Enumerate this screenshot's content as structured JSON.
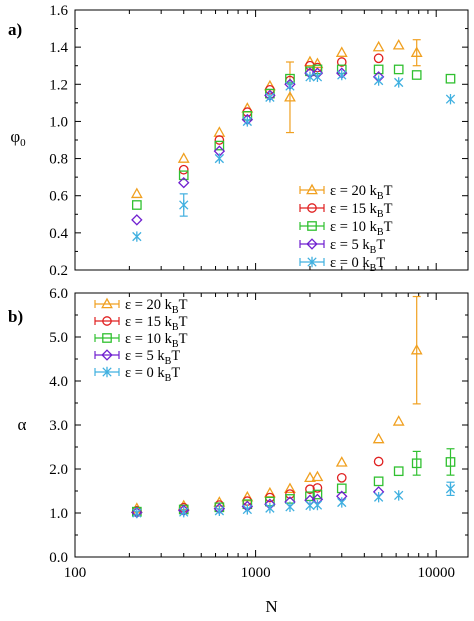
{
  "chart_data": [
    {
      "type": "scatter",
      "panel_label": "a)",
      "ylabel": "φ",
      "ylabel_sub": "0",
      "xlabel": "",
      "xscale": "log",
      "xlim": [
        100,
        15000
      ],
      "ylim": [
        0.2,
        1.6
      ],
      "yticks": [
        "0.2",
        "0.4",
        "0.6",
        "0.8",
        "1.0",
        "1.2",
        "1.4",
        "1.6"
      ],
      "xticks": [],
      "legend_placement": "bottom-right",
      "series": [
        {
          "name": "ε = 20 k_BT",
          "label_prefix": "ε = 20 k",
          "label_sub": "B",
          "label_suffix": "T",
          "marker": "triangle",
          "color": "#f0a020",
          "points": [
            {
              "x": 220,
              "y": 0.61
            },
            {
              "x": 400,
              "y": 0.8
            },
            {
              "x": 630,
              "y": 0.94
            },
            {
              "x": 900,
              "y": 1.07
            },
            {
              "x": 1200,
              "y": 1.19
            },
            {
              "x": 1550,
              "y": 1.13,
              "err": 0.19
            },
            {
              "x": 2000,
              "y": 1.32
            },
            {
              "x": 2200,
              "y": 1.31
            },
            {
              "x": 3000,
              "y": 1.37
            },
            {
              "x": 4800,
              "y": 1.4
            },
            {
              "x": 6200,
              "y": 1.41
            },
            {
              "x": 7800,
              "y": 1.37,
              "err": 0.07
            }
          ]
        },
        {
          "name": "ε = 15 k_BT",
          "label_prefix": "ε = 15 k",
          "label_sub": "B",
          "label_suffix": "T",
          "marker": "circle",
          "color": "#e02020",
          "points": [
            {
              "x": 400,
              "y": 0.74
            },
            {
              "x": 630,
              "y": 0.9
            },
            {
              "x": 900,
              "y": 1.05
            },
            {
              "x": 1200,
              "y": 1.17
            },
            {
              "x": 1550,
              "y": 1.22
            },
            {
              "x": 2000,
              "y": 1.3
            },
            {
              "x": 2200,
              "y": 1.29
            },
            {
              "x": 3000,
              "y": 1.32
            },
            {
              "x": 4800,
              "y": 1.34
            }
          ]
        },
        {
          "name": "ε = 10 k_BT",
          "label_prefix": "ε = 10 k",
          "label_sub": "B",
          "label_suffix": "T",
          "marker": "square",
          "color": "#30c030",
          "points": [
            {
              "x": 220,
              "y": 0.55
            },
            {
              "x": 400,
              "y": 0.71
            },
            {
              "x": 630,
              "y": 0.87
            },
            {
              "x": 900,
              "y": 1.03
            },
            {
              "x": 1200,
              "y": 1.15
            },
            {
              "x": 1550,
              "y": 1.23
            },
            {
              "x": 2000,
              "y": 1.27
            },
            {
              "x": 2200,
              "y": 1.28
            },
            {
              "x": 3000,
              "y": 1.28
            },
            {
              "x": 4800,
              "y": 1.28
            },
            {
              "x": 6200,
              "y": 1.28
            },
            {
              "x": 7800,
              "y": 1.25
            },
            {
              "x": 12000,
              "y": 1.23
            }
          ]
        },
        {
          "name": "ε =  5 k_BT",
          "label_prefix": "ε =  5 k",
          "label_sub": "B",
          "label_suffix": "T",
          "marker": "diamond",
          "color": "#7020d0",
          "points": [
            {
              "x": 220,
              "y": 0.47
            },
            {
              "x": 400,
              "y": 0.67
            },
            {
              "x": 630,
              "y": 0.84
            },
            {
              "x": 900,
              "y": 1.01
            },
            {
              "x": 1200,
              "y": 1.14
            },
            {
              "x": 1550,
              "y": 1.2
            },
            {
              "x": 2000,
              "y": 1.26
            },
            {
              "x": 2200,
              "y": 1.26
            },
            {
              "x": 3000,
              "y": 1.26
            },
            {
              "x": 4800,
              "y": 1.24
            }
          ]
        },
        {
          "name": "ε =  0 k_BT",
          "label_prefix": "ε =  0 k",
          "label_sub": "B",
          "label_suffix": "T",
          "marker": "star",
          "color": "#40b0e0",
          "points": [
            {
              "x": 220,
              "y": 0.38
            },
            {
              "x": 400,
              "y": 0.55,
              "err": 0.06
            },
            {
              "x": 630,
              "y": 0.8
            },
            {
              "x": 900,
              "y": 1.0
            },
            {
              "x": 1200,
              "y": 1.13
            },
            {
              "x": 1550,
              "y": 1.19
            },
            {
              "x": 2000,
              "y": 1.24
            },
            {
              "x": 2200,
              "y": 1.24
            },
            {
              "x": 3000,
              "y": 1.25
            },
            {
              "x": 4800,
              "y": 1.22
            },
            {
              "x": 6200,
              "y": 1.21
            },
            {
              "x": 12000,
              "y": 1.12
            }
          ]
        }
      ]
    },
    {
      "type": "scatter",
      "panel_label": "b)",
      "ylabel": "α",
      "ylabel_sub": "",
      "xlabel": "N",
      "xscale": "log",
      "xlim": [
        100,
        15000
      ],
      "ylim": [
        0.0,
        6.0
      ],
      "yticks": [
        "0.0",
        "1.0",
        "2.0",
        "3.0",
        "4.0",
        "5.0",
        "6.0"
      ],
      "xticks": [
        "100",
        "1000",
        "10000"
      ],
      "legend_placement": "top-left",
      "series": [
        {
          "name": "ε = 20 k_BT",
          "label_prefix": "ε = 20 k",
          "label_sub": "B",
          "label_suffix": "T",
          "marker": "triangle",
          "color": "#f0a020",
          "points": [
            {
              "x": 220,
              "y": 1.1
            },
            {
              "x": 400,
              "y": 1.16
            },
            {
              "x": 630,
              "y": 1.24
            },
            {
              "x": 900,
              "y": 1.36
            },
            {
              "x": 1200,
              "y": 1.45
            },
            {
              "x": 1550,
              "y": 1.55
            },
            {
              "x": 2000,
              "y": 1.8
            },
            {
              "x": 2200,
              "y": 1.82
            },
            {
              "x": 3000,
              "y": 2.15
            },
            {
              "x": 4800,
              "y": 2.68
            },
            {
              "x": 6200,
              "y": 3.08
            },
            {
              "x": 7800,
              "y": 4.7,
              "err": 1.22
            }
          ]
        },
        {
          "name": "ε = 15 k_BT",
          "label_prefix": "ε = 15 k",
          "label_sub": "B",
          "label_suffix": "T",
          "marker": "circle",
          "color": "#e02020",
          "points": [
            {
              "x": 220,
              "y": 1.05
            },
            {
              "x": 400,
              "y": 1.12
            },
            {
              "x": 630,
              "y": 1.18
            },
            {
              "x": 900,
              "y": 1.27
            },
            {
              "x": 1200,
              "y": 1.35
            },
            {
              "x": 1550,
              "y": 1.43
            },
            {
              "x": 2000,
              "y": 1.54
            },
            {
              "x": 2200,
              "y": 1.57
            },
            {
              "x": 3000,
              "y": 1.8
            },
            {
              "x": 4800,
              "y": 2.17
            }
          ]
        },
        {
          "name": "ε = 10 k_BT",
          "label_prefix": "ε = 10 k",
          "label_sub": "B",
          "label_suffix": "T",
          "marker": "square",
          "color": "#30c030",
          "points": [
            {
              "x": 220,
              "y": 1.03
            },
            {
              "x": 400,
              "y": 1.08
            },
            {
              "x": 630,
              "y": 1.13
            },
            {
              "x": 900,
              "y": 1.2
            },
            {
              "x": 1200,
              "y": 1.26
            },
            {
              "x": 1550,
              "y": 1.32
            },
            {
              "x": 2000,
              "y": 1.38
            },
            {
              "x": 2200,
              "y": 1.42
            },
            {
              "x": 3000,
              "y": 1.56
            },
            {
              "x": 4800,
              "y": 1.72
            },
            {
              "x": 6200,
              "y": 1.95
            },
            {
              "x": 7800,
              "y": 2.13,
              "err": 0.27
            },
            {
              "x": 12000,
              "y": 2.16,
              "err": 0.3
            }
          ]
        },
        {
          "name": "ε =  5 k_BT",
          "label_prefix": "ε =  5 k",
          "label_sub": "B",
          "label_suffix": "T",
          "marker": "diamond",
          "color": "#7020d0",
          "points": [
            {
              "x": 220,
              "y": 1.01
            },
            {
              "x": 400,
              "y": 1.06
            },
            {
              "x": 630,
              "y": 1.1
            },
            {
              "x": 900,
              "y": 1.15
            },
            {
              "x": 1200,
              "y": 1.2
            },
            {
              "x": 1550,
              "y": 1.25
            },
            {
              "x": 2000,
              "y": 1.29
            },
            {
              "x": 2200,
              "y": 1.31
            },
            {
              "x": 3000,
              "y": 1.38
            },
            {
              "x": 4800,
              "y": 1.48
            }
          ]
        },
        {
          "name": "ε =  0 k_BT",
          "label_prefix": "ε =  0 k",
          "label_sub": "B",
          "label_suffix": "T",
          "marker": "star",
          "color": "#40b0e0",
          "points": [
            {
              "x": 220,
              "y": 1.0
            },
            {
              "x": 400,
              "y": 1.02
            },
            {
              "x": 630,
              "y": 1.05
            },
            {
              "x": 900,
              "y": 1.08
            },
            {
              "x": 1200,
              "y": 1.11
            },
            {
              "x": 1550,
              "y": 1.14
            },
            {
              "x": 2000,
              "y": 1.17
            },
            {
              "x": 2200,
              "y": 1.18
            },
            {
              "x": 3000,
              "y": 1.24
            },
            {
              "x": 4800,
              "y": 1.36
            },
            {
              "x": 6200,
              "y": 1.4
            },
            {
              "x": 12000,
              "y": 1.55,
              "err": 0.15
            }
          ]
        }
      ]
    }
  ]
}
